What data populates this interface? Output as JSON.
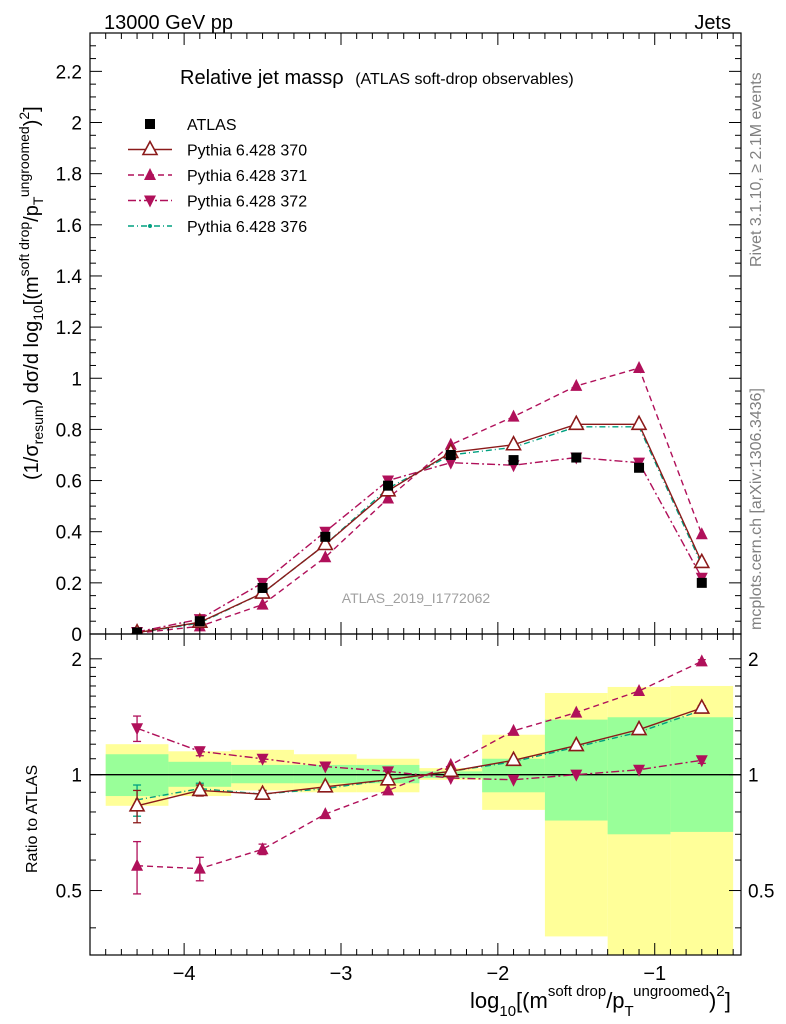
{
  "header": {
    "energy": "13000 GeV pp",
    "process": "Jets"
  },
  "side": {
    "rivet": "Rivet 3.1.10, ≥ 2.1M events",
    "mcplots": "mcplots.cern.ch [arXiv:1306.3436]"
  },
  "chart_data": {
    "type": "line",
    "title_main": "Relative jet massρ",
    "title_sub": "(ATLAS soft-drop observables)",
    "analysis_label": "ATLAS_2019_I1772062",
    "xlabel": "log10[(m^soft drop/pT^ungroomed)^2]",
    "ylabel_main": "(1/σresum) dσ/d log10[(m^soft drop/pT^ungroomed)^2]",
    "ylabel_ratio": "Ratio to ATLAS",
    "xlim": [
      -4.6,
      -0.45
    ],
    "ylim_main": [
      0,
      2.35
    ],
    "ylim_ratio": [
      0.34,
      2.32
    ],
    "x_ticks": [
      -4,
      -3,
      -2,
      -1
    ],
    "x_tick_labels": [
      "−4",
      "−3",
      "−2",
      "−1"
    ],
    "y_ticks_main": [
      0,
      0.2,
      0.4,
      0.6,
      0.8,
      1,
      1.2,
      1.4,
      1.6,
      1.8,
      2,
      2.2
    ],
    "y_tick_labels_main": [
      "0",
      "0.2",
      "0.4",
      "0.6",
      "0.8",
      "1",
      "1.2",
      "1.4",
      "1.6",
      "1.8",
      "2",
      "2.2"
    ],
    "y_ticks_ratio": [
      0.5,
      1,
      2
    ],
    "y_tick_labels_ratio": [
      "0.5",
      "1",
      "2"
    ],
    "x": [
      -4.3,
      -3.9,
      -3.5,
      -3.1,
      -2.7,
      -2.3,
      -1.9,
      -1.5,
      -1.1,
      -0.7
    ],
    "bin_edges": [
      -4.5,
      -4.1,
      -3.7,
      -3.3,
      -2.9,
      -2.5,
      -2.1,
      -1.7,
      -1.3,
      -0.9,
      -0.5
    ],
    "series": [
      {
        "name": "ATLAS",
        "color": "#000000",
        "marker": "square",
        "values": [
          0.006,
          0.05,
          0.18,
          0.38,
          0.58,
          0.7,
          0.68,
          0.69,
          0.65,
          0.2
        ]
      },
      {
        "name": "Pythia 6.428 370",
        "color": "#8b1a1a",
        "marker": "open-triangle-up",
        "dash": "none",
        "values": [
          0.005,
          0.046,
          0.16,
          0.35,
          0.56,
          0.71,
          0.74,
          0.82,
          0.82,
          0.28
        ]
      },
      {
        "name": "Pythia 6.428 371",
        "color": "#b0105a",
        "marker": "triangle-up",
        "dash": "6,4",
        "values": [
          0.0035,
          0.03,
          0.115,
          0.3,
          0.53,
          0.74,
          0.85,
          0.97,
          1.04,
          0.39
        ]
      },
      {
        "name": "Pythia 6.428 372",
        "color": "#b0105a",
        "marker": "triangle-down",
        "dash": "8,3,2,3",
        "values": [
          0.008,
          0.058,
          0.2,
          0.4,
          0.6,
          0.67,
          0.66,
          0.69,
          0.67,
          0.22
        ]
      },
      {
        "name": "Pythia 6.428 376",
        "color": "#00a080",
        "marker": "dot",
        "dash": "6,3,1,3",
        "values": [
          0.0045,
          0.043,
          0.16,
          0.35,
          0.57,
          0.7,
          0.73,
          0.81,
          0.81,
          0.27
        ]
      }
    ],
    "ratio": [
      {
        "name": "Pythia 6.428 370",
        "values": [
          0.83,
          0.91,
          0.89,
          0.93,
          0.97,
          1.02,
          1.09,
          1.19,
          1.31,
          1.49
        ]
      },
      {
        "name": "Pythia 6.428 371",
        "values": [
          0.58,
          0.57,
          0.64,
          0.79,
          0.91,
          1.06,
          1.3,
          1.45,
          1.65,
          1.97
        ]
      },
      {
        "name": "Pythia 6.428 372",
        "values": [
          1.32,
          1.15,
          1.1,
          1.05,
          1.02,
          0.98,
          0.97,
          1.0,
          1.03,
          1.09
        ]
      },
      {
        "name": "Pythia 6.428 376",
        "values": [
          0.86,
          0.92,
          0.89,
          0.92,
          0.97,
          1.02,
          1.08,
          1.18,
          1.29,
          1.47
        ]
      }
    ],
    "ratio_errors": {
      "Pythia 6.428 370": [
        0.08,
        0.03,
        0.02,
        0.01,
        0.01,
        0.01,
        0.01,
        0.01,
        0.01,
        0.02
      ],
      "Pythia 6.428 371": [
        0.09,
        0.04,
        0.02,
        0.01,
        0.01,
        0.01,
        0.01,
        0.01,
        0.01,
        0.02
      ],
      "Pythia 6.428 372": [
        0.1,
        0.03,
        0.02,
        0.01,
        0.01,
        0.01,
        0.01,
        0.01,
        0.01,
        0.02
      ],
      "Pythia 6.428 376": [
        0.08,
        0.03,
        0.02,
        0.01,
        0.01,
        0.01,
        0.01,
        0.01,
        0.01,
        0.02
      ]
    },
    "band_inner": [
      [
        0.88,
        1.13
      ],
      [
        0.93,
        1.08
      ],
      [
        0.95,
        1.06
      ],
      [
        0.95,
        1.06
      ],
      [
        0.95,
        1.06
      ],
      [
        0.98,
        1.02
      ],
      [
        0.9,
        1.1
      ],
      [
        0.76,
        1.39
      ],
      [
        0.7,
        1.41
      ],
      [
        0.71,
        1.41
      ]
    ],
    "band_outer": [
      [
        0.83,
        1.2
      ],
      [
        0.88,
        1.15
      ],
      [
        0.91,
        1.16
      ],
      [
        0.9,
        1.13
      ],
      [
        0.9,
        1.1
      ],
      [
        0.97,
        1.04
      ],
      [
        0.81,
        1.27
      ],
      [
        0.38,
        1.63
      ],
      [
        0.33,
        1.69
      ],
      [
        0.33,
        1.7
      ]
    ],
    "band_colors": {
      "inner": "#99ff99",
      "outer": "#ffff99"
    }
  }
}
